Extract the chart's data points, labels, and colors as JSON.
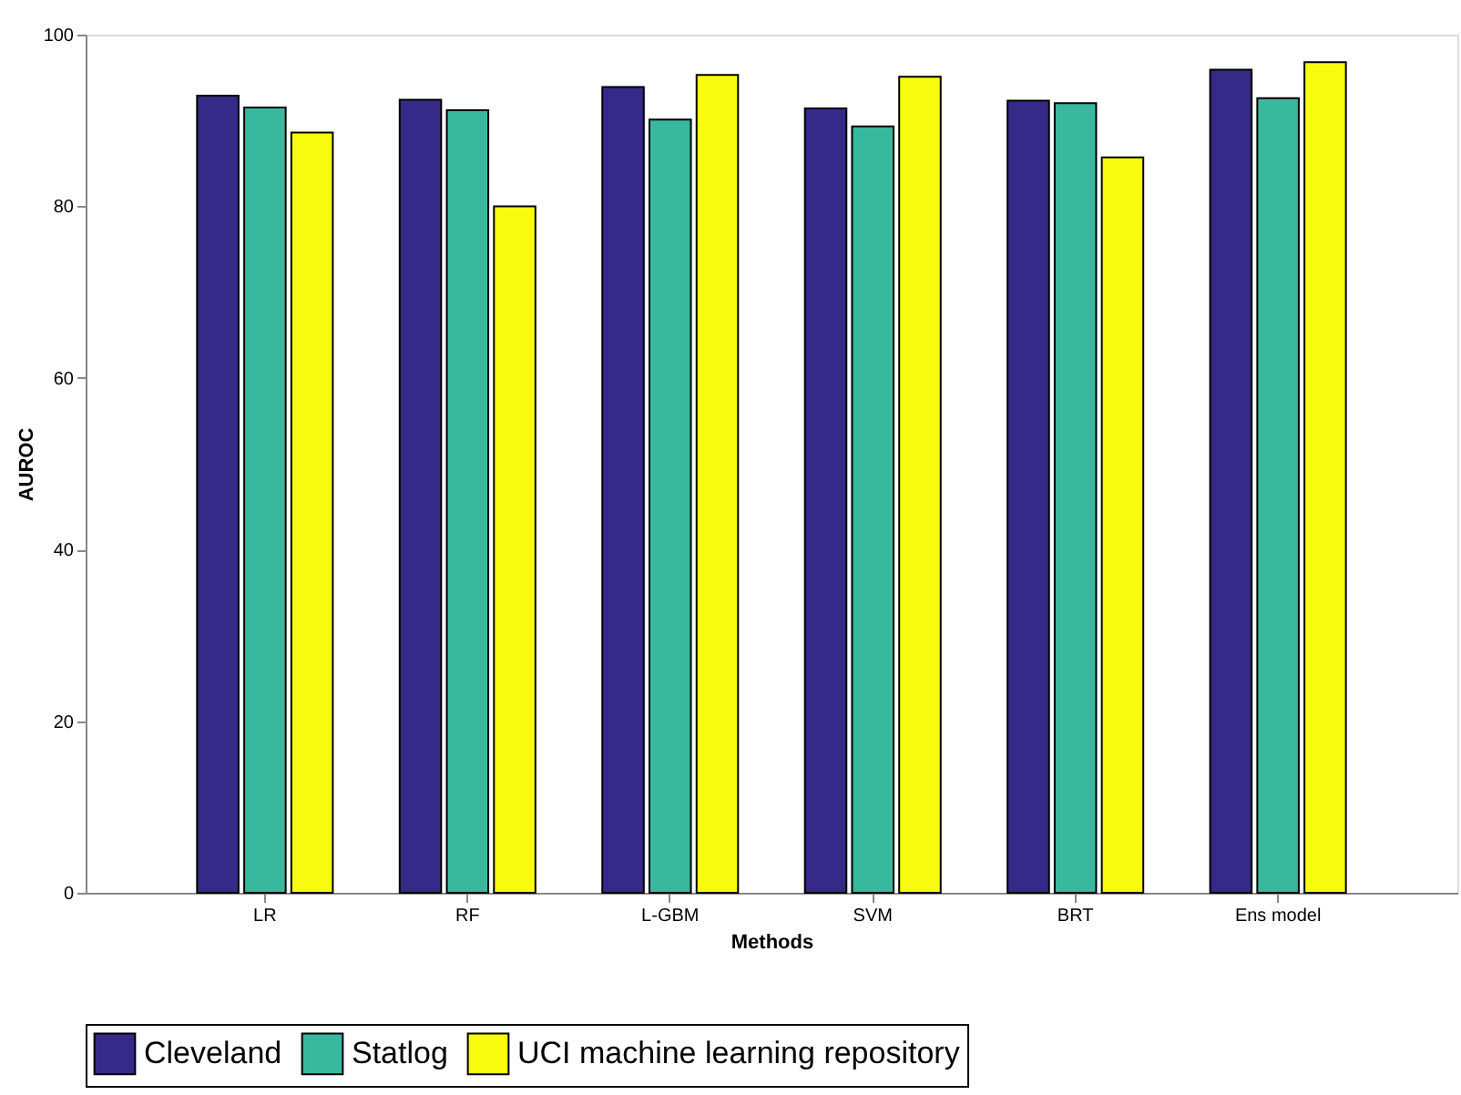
{
  "chart_data": {
    "type": "bar",
    "xlabel": "Methods",
    "ylabel": "AUROC",
    "categories": [
      "LR",
      "RF",
      "L-GBM",
      "SVM",
      "BRT",
      "Ens model"
    ],
    "series": [
      {
        "name": "Cleveland",
        "color": "#352a87",
        "values": [
          92.9,
          92.4,
          93.9,
          91.4,
          92.3,
          95.9
        ]
      },
      {
        "name": "Statlog",
        "color": "#38b99e",
        "values": [
          91.5,
          91.2,
          90.1,
          89.3,
          92.0,
          92.6
        ]
      },
      {
        "name": "UCI machine learning repository",
        "color": "#f9fb0e",
        "values": [
          88.6,
          80.0,
          95.3,
          95.1,
          85.7,
          96.8
        ]
      }
    ],
    "ylim": [
      0,
      100
    ],
    "yticks": [
      0,
      20,
      40,
      60,
      80,
      100
    ],
    "grid": false,
    "legend": "bottom"
  }
}
